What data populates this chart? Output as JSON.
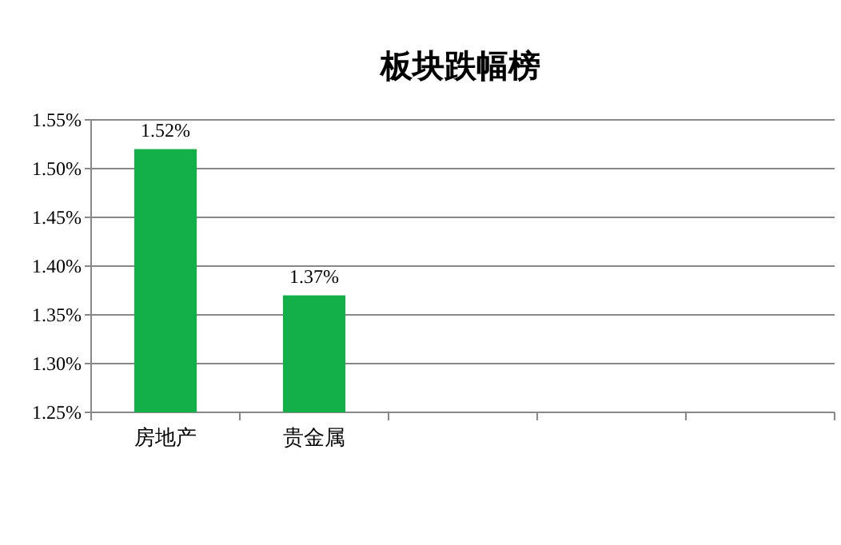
{
  "chart_data": {
    "type": "bar",
    "title": "板块跌幅榜",
    "categories": [
      "房地产",
      "贵金属",
      null,
      null,
      null
    ],
    "values": [
      1.52,
      1.37,
      null,
      null,
      null
    ],
    "value_labels": [
      "1.52%",
      "1.37%",
      null,
      null,
      null
    ],
    "color": "#13b04a",
    "ylim": [
      1.25,
      1.55
    ],
    "yticks": [
      {
        "value": 1.25,
        "label": "1.25%"
      },
      {
        "value": 1.3,
        "label": "1.30%"
      },
      {
        "value": 1.35,
        "label": "1.35%"
      },
      {
        "value": 1.4,
        "label": "1.40%"
      },
      {
        "value": 1.45,
        "label": "1.45%"
      },
      {
        "value": 1.5,
        "label": "1.50%"
      },
      {
        "value": 1.55,
        "label": "1.55%"
      }
    ],
    "grid": "y"
  }
}
